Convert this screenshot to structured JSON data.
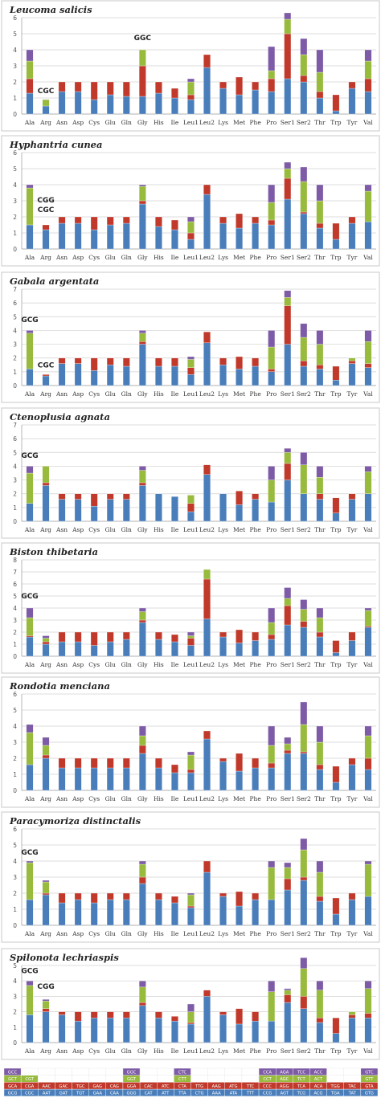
{
  "colors": {
    "blue": "#4a7ebb",
    "red": "#c0392b",
    "green": "#98bb3e",
    "purple": "#7d5ba6",
    "grid": "#d0d0d0",
    "axis": "#999999"
  },
  "categories": [
    "Ala",
    "Arg",
    "Asn",
    "Asp",
    "Cys",
    "Glu",
    "Gln",
    "Gly",
    "His",
    "Ile",
    "Leu1",
    "Leu2",
    "Lys",
    "Met",
    "Phe",
    "Pro",
    "Ser1",
    "Ser2",
    "Thr",
    "Trp",
    "Tyr",
    "Val"
  ],
  "chart_data": [
    {
      "type": "bar",
      "title": "Leucoma salicis",
      "ylim": [
        0,
        6
      ],
      "yticks": [
        0,
        1,
        2,
        3,
        4,
        5,
        6
      ],
      "annotations": [
        {
          "label": "CGC",
          "category": "Arg",
          "y": 1.3
        },
        {
          "label": "GGC",
          "category": "Gly",
          "y": 4.6
        }
      ],
      "values": [
        [
          1.3,
          0.9,
          1.1,
          0.7
        ],
        [
          0.5,
          0,
          0.4,
          0
        ],
        [
          1.4,
          0.6,
          0,
          0
        ],
        [
          1.4,
          0.6,
          0,
          0
        ],
        [
          0.9,
          1.1,
          0,
          0
        ],
        [
          1.2,
          0.8,
          0,
          0
        ],
        [
          1.1,
          0.9,
          0,
          0
        ],
        [
          1.1,
          1.9,
          1.0,
          0
        ],
        [
          1.3,
          0.7,
          0,
          0
        ],
        [
          1.0,
          0.6,
          0,
          0
        ],
        [
          0.9,
          0.3,
          0.8,
          0.2
        ],
        [
          2.9,
          0.8,
          0,
          0
        ],
        [
          1.6,
          0.4,
          0,
          0
        ],
        [
          1.2,
          1.1,
          0,
          0
        ],
        [
          1.5,
          0.5,
          0,
          0
        ],
        [
          1.4,
          0.8,
          0.5,
          1.5
        ],
        [
          2.2,
          2.8,
          0.9,
          0.4
        ],
        [
          2.0,
          0.4,
          1.3,
          1.0
        ],
        [
          1.0,
          0.4,
          1.2,
          1.4
        ],
        [
          0.2,
          1.0,
          0,
          0
        ],
        [
          1.6,
          0.4,
          0,
          0
        ],
        [
          1.4,
          0.8,
          1.1,
          0.7
        ]
      ]
    },
    {
      "type": "bar",
      "title": "Hyphantria cunea",
      "ylim": [
        0,
        6
      ],
      "yticks": [
        0,
        1,
        2,
        3,
        4,
        5,
        6
      ],
      "annotations": [
        {
          "label": "CGG",
          "category": "Arg",
          "y": 2.9
        },
        {
          "label": "CGC",
          "category": "Arg",
          "y": 2.3
        }
      ],
      "values": [
        [
          1.5,
          0,
          2.3,
          0.2
        ],
        [
          1.2,
          0.3,
          0,
          0
        ],
        [
          1.6,
          0.4,
          0,
          0
        ],
        [
          1.6,
          0.4,
          0,
          0
        ],
        [
          1.2,
          0.8,
          0,
          0
        ],
        [
          1.5,
          0.5,
          0,
          0
        ],
        [
          1.6,
          0.4,
          0,
          0
        ],
        [
          2.8,
          0.2,
          0.9,
          0.1
        ],
        [
          1.4,
          0.6,
          0,
          0
        ],
        [
          1.2,
          0.6,
          0,
          0
        ],
        [
          0.6,
          0.4,
          0.7,
          0.3
        ],
        [
          3.4,
          0.6,
          0,
          0
        ],
        [
          1.6,
          0.4,
          0,
          0
        ],
        [
          1.3,
          0.9,
          0,
          0
        ],
        [
          1.6,
          0.4,
          0,
          0
        ],
        [
          1.5,
          0.3,
          1.1,
          1.1
        ],
        [
          3.1,
          1.3,
          0.6,
          0.4
        ],
        [
          2.2,
          0.1,
          1.9,
          0.9
        ],
        [
          1.3,
          0.3,
          1.4,
          1.0
        ],
        [
          0.6,
          1.0,
          0,
          0
        ],
        [
          1.6,
          0.4,
          0,
          0
        ],
        [
          1.7,
          0,
          1.9,
          0.4
        ]
      ]
    },
    {
      "type": "bar",
      "title": "Gabala argentata",
      "ylim": [
        0,
        7
      ],
      "yticks": [
        0,
        1,
        2,
        3,
        4,
        5,
        6,
        7
      ],
      "annotations": [
        {
          "label": "GCG",
          "category": "Ala",
          "y": 4.6
        },
        {
          "label": "CGC",
          "category": "Arg",
          "y": 1.3
        }
      ],
      "values": [
        [
          1.2,
          0,
          2.6,
          0.2
        ],
        [
          0.7,
          0.1,
          0,
          0
        ],
        [
          1.6,
          0.4,
          0,
          0
        ],
        [
          1.6,
          0.4,
          0,
          0
        ],
        [
          1.1,
          0.9,
          0,
          0
        ],
        [
          1.5,
          0.5,
          0,
          0
        ],
        [
          1.4,
          0.6,
          0,
          0
        ],
        [
          3.0,
          0.2,
          0.6,
          0.2
        ],
        [
          1.4,
          0.6,
          0,
          0
        ],
        [
          1.4,
          0.6,
          0,
          0
        ],
        [
          0.8,
          0.5,
          0.6,
          0.2
        ],
        [
          3.1,
          0.8,
          0,
          0
        ],
        [
          1.5,
          0.5,
          0,
          0
        ],
        [
          1.2,
          0.9,
          0,
          0
        ],
        [
          1.4,
          0.6,
          0,
          0
        ],
        [
          1.0,
          0.2,
          1.6,
          1.2
        ],
        [
          3.0,
          2.8,
          0.6,
          0.5
        ],
        [
          1.4,
          0.4,
          1.7,
          1.0
        ],
        [
          1.2,
          0.3,
          1.5,
          1.0
        ],
        [
          0.4,
          1.0,
          0,
          0
        ],
        [
          1.6,
          0.2,
          0.2,
          0
        ],
        [
          1.3,
          0.3,
          1.6,
          0.8
        ]
      ]
    },
    {
      "type": "bar",
      "title": "Ctenoplusia agnata",
      "ylim": [
        0,
        7
      ],
      "yticks": [
        0,
        1,
        2,
        3,
        4,
        5,
        6,
        7
      ],
      "annotations": [
        {
          "label": "GCG",
          "category": "Ala",
          "y": 4.6
        }
      ],
      "values": [
        [
          1.3,
          0,
          2.2,
          0.5
        ],
        [
          2.6,
          0.2,
          1.2,
          0
        ],
        [
          1.6,
          0.4,
          0,
          0
        ],
        [
          1.6,
          0.4,
          0,
          0
        ],
        [
          1.1,
          0.9,
          0,
          0
        ],
        [
          1.6,
          0.4,
          0,
          0
        ],
        [
          1.6,
          0.4,
          0,
          0
        ],
        [
          2.6,
          0.2,
          0.9,
          0.3
        ],
        [
          2.0,
          0,
          0,
          0
        ],
        [
          1.8,
          0,
          0,
          0
        ],
        [
          0.7,
          0.6,
          0.6,
          0
        ],
        [
          3.4,
          0.7,
          0,
          0
        ],
        [
          2.0,
          0,
          0,
          0
        ],
        [
          1.2,
          1.0,
          0,
          0
        ],
        [
          1.6,
          0.4,
          0,
          0
        ],
        [
          1.4,
          0,
          1.6,
          1.0
        ],
        [
          3.0,
          1.2,
          0.8,
          0.3
        ],
        [
          2.0,
          0,
          2.1,
          0.9
        ],
        [
          1.6,
          0.4,
          1.2,
          0.8
        ],
        [
          0.6,
          1.1,
          0,
          0
        ],
        [
          1.6,
          0.4,
          0,
          0
        ],
        [
          2.0,
          0,
          1.6,
          0.4
        ]
      ]
    },
    {
      "type": "bar",
      "title": "Biston thibetaria",
      "ylim": [
        0,
        8
      ],
      "yticks": [
        0,
        1,
        2,
        3,
        4,
        5,
        6,
        7,
        8
      ],
      "annotations": [
        {
          "label": "GCG",
          "category": "Ala",
          "y": 4.8
        }
      ],
      "values": [
        [
          1.6,
          0.1,
          1.5,
          0.8
        ],
        [
          1.0,
          0.2,
          0.3,
          0.2
        ],
        [
          1.2,
          0.8,
          0,
          0
        ],
        [
          1.2,
          0.8,
          0,
          0
        ],
        [
          0.9,
          1.1,
          0,
          0
        ],
        [
          1.2,
          0.8,
          0,
          0
        ],
        [
          1.4,
          0.6,
          0,
          0
        ],
        [
          2.8,
          0.2,
          0.7,
          0.3
        ],
        [
          1.4,
          0.6,
          0,
          0
        ],
        [
          1.2,
          0.6,
          0,
          0
        ],
        [
          0.9,
          0.6,
          0.2,
          0.3
        ],
        [
          3.1,
          3.3,
          0.8,
          0
        ],
        [
          1.6,
          0.4,
          0,
          0
        ],
        [
          1.1,
          1.1,
          0,
          0
        ],
        [
          1.3,
          0.7,
          0,
          0
        ],
        [
          1.4,
          0.4,
          1.0,
          1.2
        ],
        [
          2.6,
          1.6,
          0.6,
          0.9
        ],
        [
          2.4,
          0.5,
          1.0,
          0.8
        ],
        [
          1.6,
          0.4,
          1.2,
          0.8
        ],
        [
          0.3,
          1.0,
          0,
          0
        ],
        [
          1.3,
          0.7,
          0,
          0
        ],
        [
          2.4,
          0.1,
          1.3,
          0.2
        ]
      ]
    },
    {
      "type": "bar",
      "title": "Rondotia menciana",
      "ylim": [
        0,
        6
      ],
      "yticks": [
        0,
        1,
        2,
        3,
        4,
        5,
        6
      ],
      "annotations": [],
      "values": [
        [
          1.6,
          0,
          2.0,
          0.5
        ],
        [
          2.0,
          0.2,
          0.6,
          0.5
        ],
        [
          1.4,
          0.6,
          0,
          0
        ],
        [
          1.4,
          0.6,
          0,
          0
        ],
        [
          1.4,
          0.6,
          0,
          0
        ],
        [
          1.4,
          0.6,
          0,
          0
        ],
        [
          1.4,
          0.6,
          0,
          0
        ],
        [
          2.3,
          0.5,
          0.6,
          0.6
        ],
        [
          1.4,
          0.6,
          0,
          0
        ],
        [
          1.1,
          0.5,
          0,
          0
        ],
        [
          1.1,
          0.2,
          0.9,
          0.2
        ],
        [
          3.2,
          0.5,
          0,
          0
        ],
        [
          1.8,
          0.2,
          0,
          0
        ],
        [
          1.2,
          1.1,
          0,
          0
        ],
        [
          1.4,
          0.6,
          0,
          0
        ],
        [
          1.4,
          0.3,
          1.1,
          1.2
        ],
        [
          2.3,
          0.2,
          0.4,
          0.4
        ],
        [
          2.3,
          0.1,
          1.7,
          1.4
        ],
        [
          1.3,
          0.3,
          1.4,
          1.0
        ],
        [
          0.5,
          1.0,
          0,
          0
        ],
        [
          1.6,
          0.4,
          0,
          0
        ],
        [
          1.3,
          0.7,
          1.4,
          0.6
        ]
      ]
    },
    {
      "type": "bar",
      "title": "Paracymoriza distinctalis",
      "ylim": [
        0,
        6
      ],
      "yticks": [
        0,
        1,
        2,
        3,
        4,
        5,
        6
      ],
      "annotations": [
        {
          "label": "GCG",
          "category": "Ala",
          "y": 4.4
        }
      ],
      "values": [
        [
          1.6,
          0,
          2.3,
          0.1
        ],
        [
          1.9,
          0.1,
          0.7,
          0.1
        ],
        [
          1.4,
          0.6,
          0,
          0
        ],
        [
          1.6,
          0.4,
          0,
          0
        ],
        [
          1.4,
          0.6,
          0,
          0
        ],
        [
          1.6,
          0.4,
          0,
          0
        ],
        [
          1.6,
          0.4,
          0,
          0
        ],
        [
          2.6,
          0.4,
          0.8,
          0.2
        ],
        [
          1.6,
          0.4,
          0,
          0
        ],
        [
          1.4,
          0.4,
          0,
          0
        ],
        [
          1.1,
          0.1,
          0.7,
          0.1
        ],
        [
          3.3,
          0.7,
          0,
          0
        ],
        [
          1.8,
          0.2,
          0,
          0
        ],
        [
          1.2,
          0.9,
          0,
          0
        ],
        [
          1.6,
          0.4,
          0,
          0
        ],
        [
          1.6,
          0,
          2.0,
          0.4
        ],
        [
          2.2,
          0.7,
          0.7,
          0.3
        ],
        [
          2.8,
          0.2,
          1.7,
          0.7
        ],
        [
          1.5,
          0.3,
          1.5,
          0.7
        ],
        [
          0.7,
          1.0,
          0,
          0
        ],
        [
          1.6,
          0.4,
          0,
          0
        ],
        [
          1.8,
          0,
          2.0,
          0.2
        ]
      ]
    },
    {
      "type": "bar",
      "title": "Spilonota lechriaspis",
      "ylim": [
        0,
        5
      ],
      "yticks": [
        0,
        1,
        2,
        3,
        4,
        5
      ],
      "annotations": [
        {
          "label": "GCG",
          "category": "Ala",
          "y": 4.5
        },
        {
          "label": "CGG",
          "category": "Arg",
          "y": 3.5
        }
      ],
      "values": [
        [
          1.8,
          0,
          1.9,
          0.3
        ],
        [
          2.0,
          0.2,
          0.5,
          0.1
        ],
        [
          1.8,
          0.2,
          0,
          0
        ],
        [
          1.4,
          0.6,
          0,
          0
        ],
        [
          1.6,
          0.4,
          0,
          0
        ],
        [
          1.6,
          0.4,
          0,
          0
        ],
        [
          1.6,
          0.4,
          0,
          0
        ],
        [
          2.4,
          0.2,
          1.0,
          0.4
        ],
        [
          1.6,
          0.4,
          0,
          0
        ],
        [
          1.4,
          0.3,
          0,
          0
        ],
        [
          1.2,
          0.1,
          0.7,
          0.5
        ],
        [
          3.0,
          0.4,
          0,
          0
        ],
        [
          1.8,
          0.2,
          0,
          0
        ],
        [
          1.2,
          1.0,
          0,
          0
        ],
        [
          1.4,
          0.6,
          0,
          0
        ],
        [
          1.4,
          0,
          1.9,
          0.7
        ],
        [
          2.6,
          0.5,
          0.3,
          0.1
        ],
        [
          2.2,
          0.8,
          1.8,
          0.7
        ],
        [
          1.3,
          0.3,
          1.8,
          0.6
        ],
        [
          0.6,
          1.0,
          0,
          0
        ],
        [
          1.6,
          0.2,
          0.2,
          0
        ],
        [
          1.6,
          0.3,
          1.6,
          0.5
        ]
      ]
    }
  ],
  "codon_table": {
    "rows": [
      [
        "GCC",
        "",
        "",
        "",
        "",
        "",
        "",
        "GGC",
        "",
        "",
        "CTC",
        "",
        "",
        "",
        "",
        "CCA",
        "AGA",
        "TCC",
        "ACC",
        "",
        "",
        "GTC"
      ],
      [
        "GCT",
        "CGT",
        "",
        "",
        "",
        "",
        "",
        "GGT",
        "",
        "",
        "CTT",
        "",
        "",
        "",
        "",
        "CCT",
        "AGC",
        "TCT",
        "ACT",
        "",
        "",
        "GTT"
      ],
      [
        "GCA",
        "CGA",
        "AAC",
        "GAC",
        "TGC",
        "GAG",
        "CAG",
        "GGA",
        "CAC",
        "ATC",
        "CTA",
        "TTG",
        "AAG",
        "ATG",
        "TTC",
        "CCC",
        "AGG",
        "TCA",
        "ACA",
        "TGG",
        "TAC",
        "GTA"
      ],
      [
        "GCG",
        "CGC",
        "AAT",
        "GAT",
        "TGT",
        "GAA",
        "CAA",
        "GGG",
        "CAT",
        "ATT",
        "TTA",
        "CTG",
        "AAA",
        "ATA",
        "TTT",
        "CCG",
        "AGT",
        "TCG",
        "ACG",
        "TGA",
        "TAT",
        "GTG"
      ]
    ],
    "row_colors": [
      "purple",
      "green",
      "red",
      "blue"
    ]
  }
}
